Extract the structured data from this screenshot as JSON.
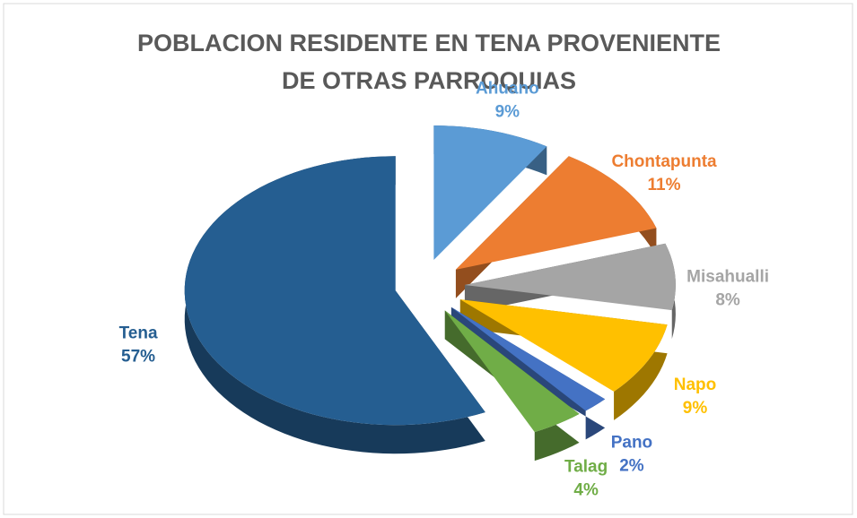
{
  "chart_data": {
    "type": "pie3d",
    "title": [
      "POBLACION RESIDENTE EN TENA  PROVENIENTE",
      "DE OTRAS  PARROQUIAS"
    ],
    "categories": [
      "Ahuano",
      "Chontapunta",
      "Misahualli",
      "Napo",
      "Pano",
      "Talag",
      "Tena"
    ],
    "values": [
      9,
      11,
      8,
      9,
      2,
      4,
      57
    ],
    "value_labels": [
      "9%",
      "11%",
      "8%",
      "9%",
      "2%",
      "4%",
      "57%"
    ],
    "colors": [
      "#5b9bd5",
      "#ed7d31",
      "#a5a5a5",
      "#ffc000",
      "#4472c4",
      "#70ad47",
      "#255e91"
    ]
  }
}
